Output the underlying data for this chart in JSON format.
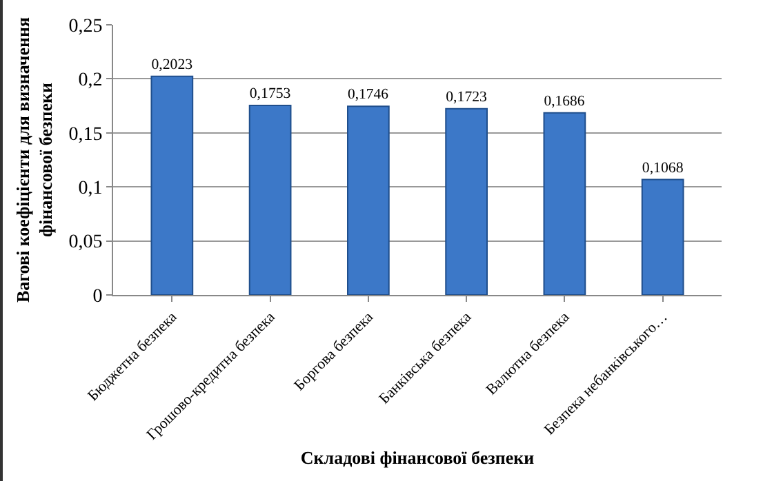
{
  "chart_data": {
    "type": "bar",
    "xlabel": "Складові фінансової безпеки",
    "ylabel": "Вагові коефіцієнти для визначення\nфінансової безпеки",
    "categories": [
      "Бюджетна безпека",
      "Грошово-кредитна безпека",
      "Боргова безпека",
      "Банківська безпека",
      "Валютна безпека",
      "Безпека небанківського…"
    ],
    "values": [
      0.2023,
      0.1753,
      0.1746,
      0.1723,
      0.1686,
      0.1068
    ],
    "value_labels": [
      "0,2023",
      "0,1753",
      "0,1746",
      "0,1723",
      "0,1686",
      "0,1068"
    ],
    "color": "#3c78c8",
    "ylim": [
      0,
      0.25
    ],
    "yticks": [
      {
        "value": 0,
        "label": "0"
      },
      {
        "value": 0.05,
        "label": "0,05"
      },
      {
        "value": 0.1,
        "label": "0,1"
      },
      {
        "value": 0.15,
        "label": "0,15"
      },
      {
        "value": 0.2,
        "label": "0,2"
      },
      {
        "value": 0.25,
        "label": "0,25"
      }
    ],
    "grid": "y"
  }
}
